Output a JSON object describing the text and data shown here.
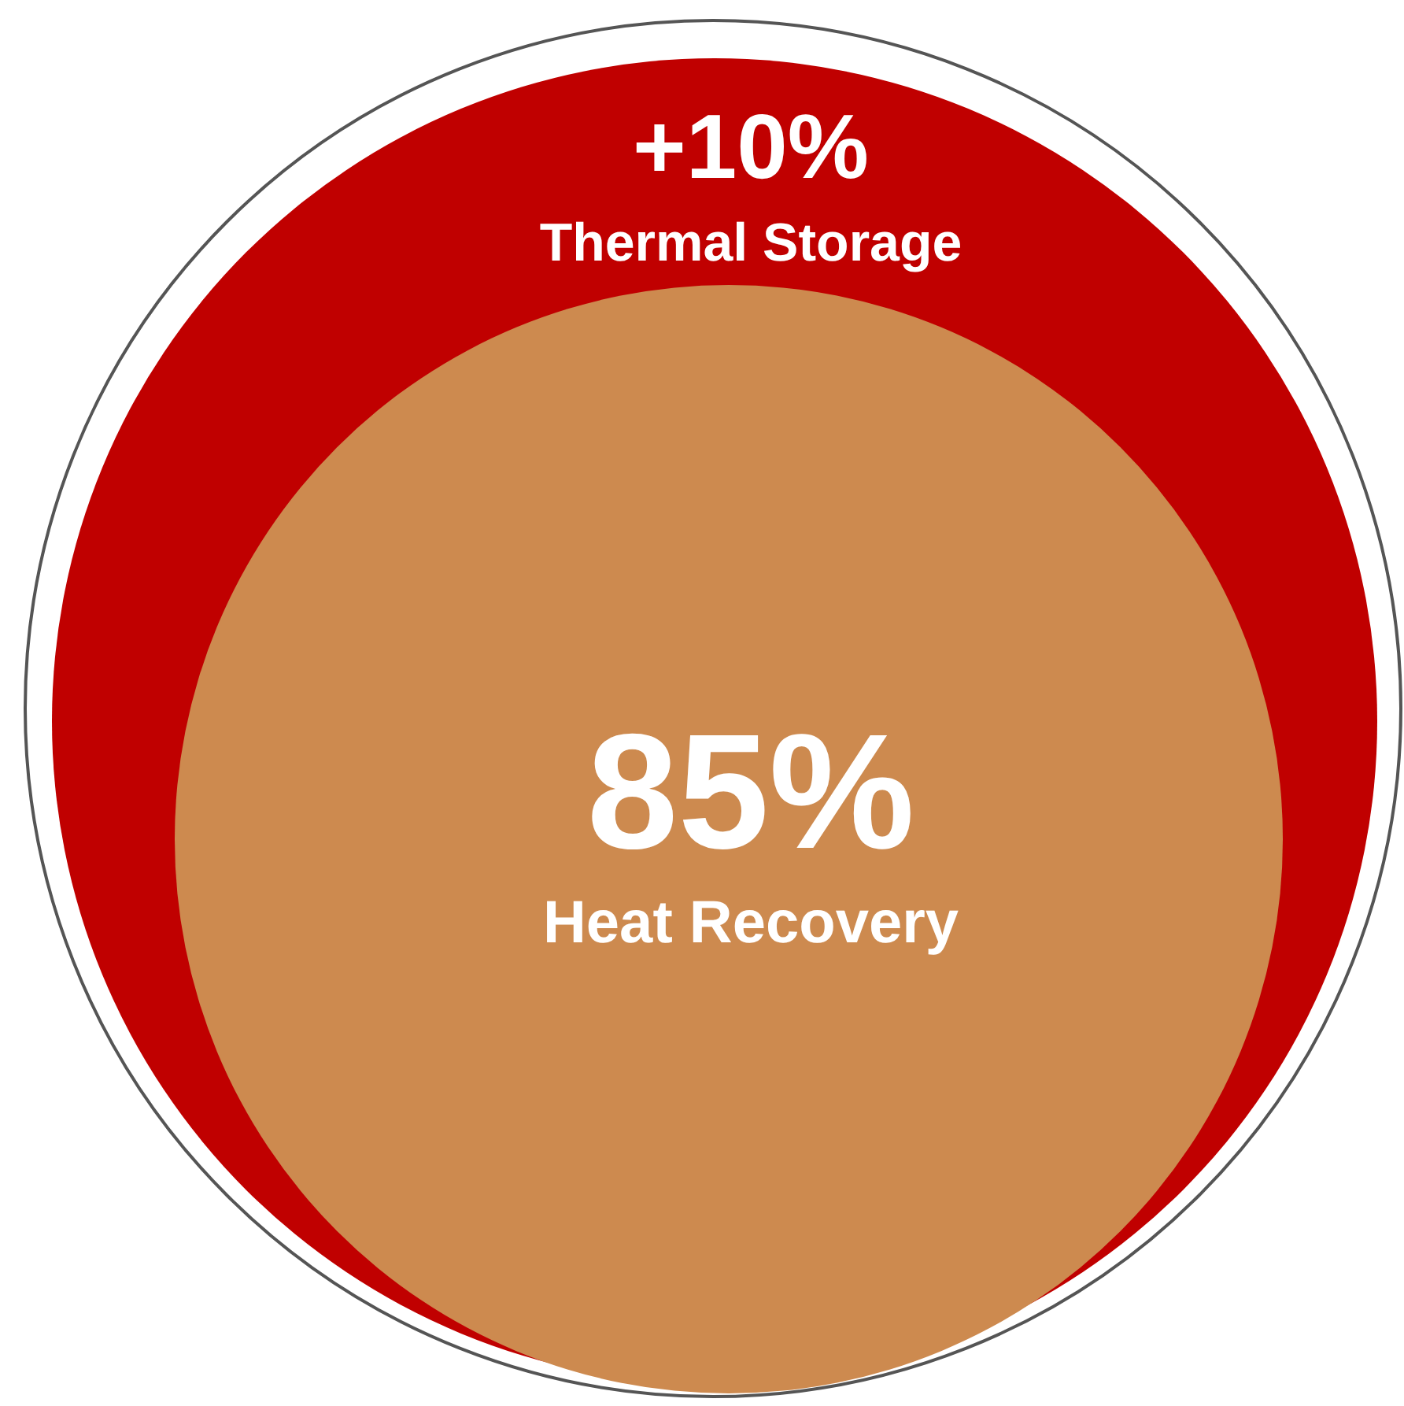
{
  "chart_data": {
    "type": "other",
    "categories": [
      "Thermal Storage",
      "Heat Recovery"
    ],
    "values": [
      10,
      85
    ],
    "value_labels": [
      "+10%",
      "85%"
    ],
    "colors": [
      "#c00000",
      "#cd8a4f"
    ]
  }
}
